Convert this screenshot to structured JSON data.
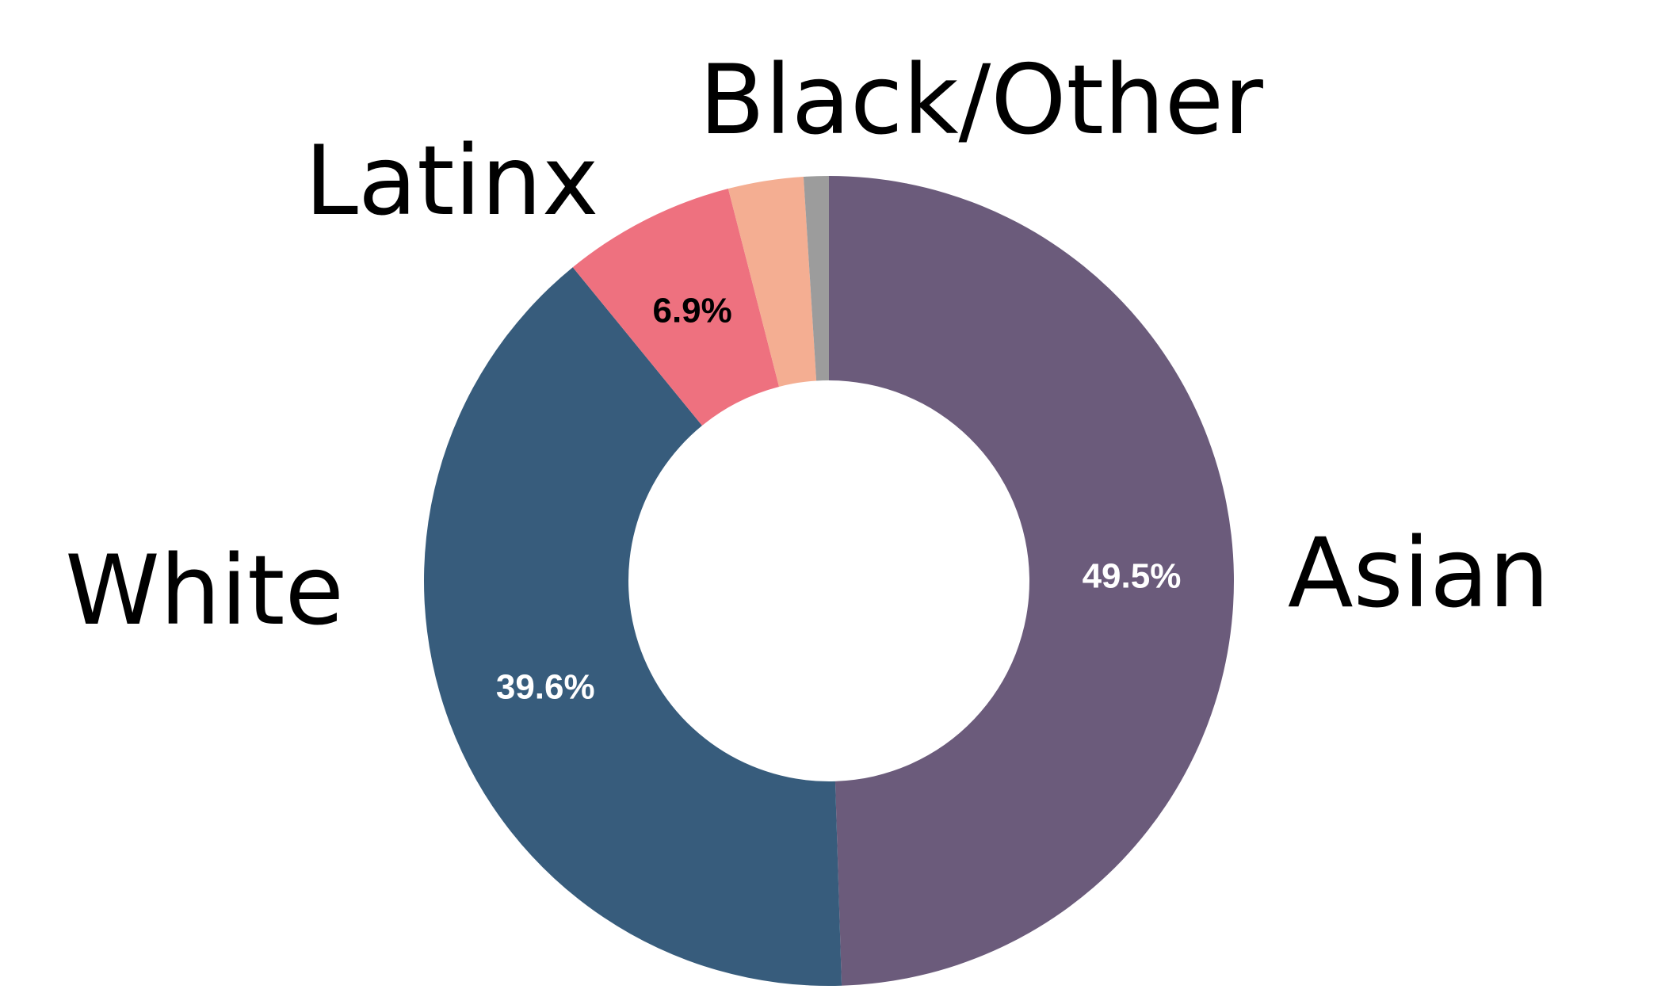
{
  "chart_data": {
    "type": "pie",
    "variant": "donut",
    "categories": [
      "Asian",
      "White",
      "Latinx",
      "",
      "Black/Other"
    ],
    "values": [
      49.5,
      39.6,
      6.9,
      3.0,
      1.0
    ],
    "value_labels": [
      "49.5%",
      "39.6%",
      "6.9%",
      "",
      ""
    ],
    "colors": [
      "#6b5b7b",
      "#375c7c",
      "#ee717f",
      "#f4ae92",
      "#9c9c9c"
    ],
    "label_colors": [
      "#ffffff",
      "#ffffff",
      "#000000",
      "#000000",
      "#000000"
    ],
    "start_angle_deg": 0,
    "direction": "clockwise",
    "legend": "none"
  }
}
